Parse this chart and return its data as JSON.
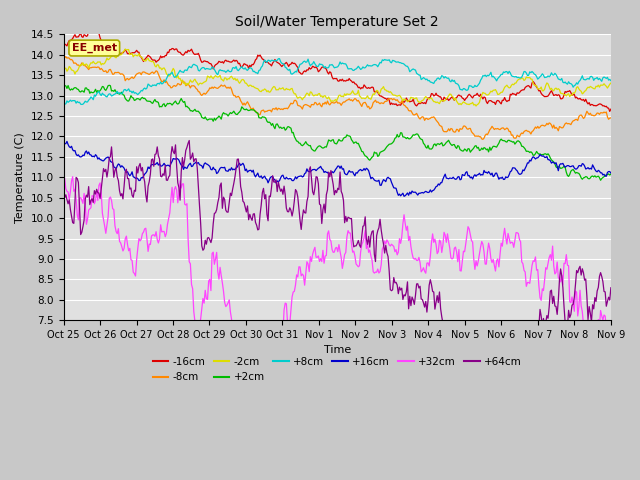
{
  "title": "Soil/Water Temperature Set 2",
  "xlabel": "Time",
  "ylabel": "Temperature (C)",
  "ylim": [
    7.5,
    14.5
  ],
  "plot_bg_color": "#e0e0e0",
  "fig_bg_color": "#c8c8c8",
  "annotation_text": "EE_met",
  "annotation_bg": "#ffff99",
  "annotation_border": "#aaaa00",
  "series": [
    {
      "label": "-16cm",
      "color": "#dd0000"
    },
    {
      "label": "-8cm",
      "color": "#ff8800"
    },
    {
      "label": "-2cm",
      "color": "#dddd00"
    },
    {
      "label": "+2cm",
      "color": "#00bb00"
    },
    {
      "label": "+8cm",
      "color": "#00cccc"
    },
    {
      "label": "+16cm",
      "color": "#0000cc"
    },
    {
      "label": "+32cm",
      "color": "#ff44ff"
    },
    {
      "label": "+64cm",
      "color": "#880088"
    }
  ],
  "xtick_labels": [
    "Oct 25",
    "Oct 26",
    "Oct 27",
    "Oct 28",
    "Oct 29",
    "Oct 30",
    "Oct 31",
    "Nov 1",
    "Nov 2",
    "Nov 3",
    "Nov 4",
    "Nov 5",
    "Nov 6",
    "Nov 7",
    "Nov 8",
    "Nov 9"
  ],
  "ytick_values": [
    7.5,
    8.0,
    8.5,
    9.0,
    9.5,
    10.0,
    10.5,
    11.0,
    11.5,
    12.0,
    12.5,
    13.0,
    13.5,
    14.0,
    14.5
  ],
  "n_points": 480,
  "seed": 12345
}
